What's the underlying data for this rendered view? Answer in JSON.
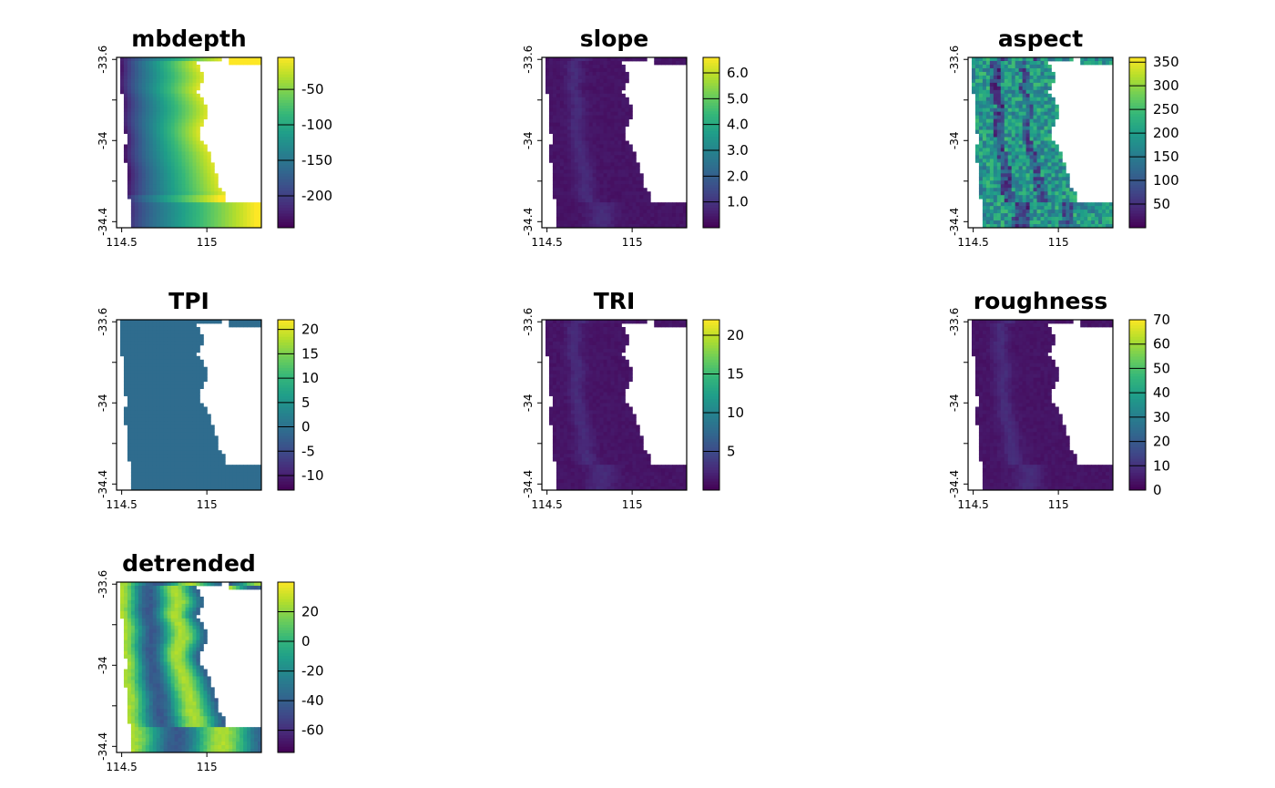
{
  "chart_data": [
    {
      "type": "heatmap",
      "title": "mbdepth",
      "x_ticks": [
        114.5,
        115
      ],
      "x_tick_labels": [
        "114.5",
        "115"
      ],
      "y_ticks": [
        -33.6,
        -34,
        -34.4
      ],
      "y_tick_labels": [
        "-33.6",
        "-34",
        "-34.4"
      ],
      "colorbar": {
        "ticks": [
          -50,
          -100,
          -150,
          -200
        ],
        "tick_labels": [
          "-50",
          "-100",
          "-150",
          "-200"
        ],
        "range": [
          -245,
          -5
        ]
      },
      "pattern": "gradient"
    },
    {
      "type": "heatmap",
      "title": "slope",
      "x_ticks": [
        114.5,
        115
      ],
      "x_tick_labels": [
        "114.5",
        "115"
      ],
      "y_ticks": [
        -33.6,
        -34,
        -34.4
      ],
      "y_tick_labels": [
        "-33.6",
        "-34",
        "-34.4"
      ],
      "colorbar": {
        "ticks": [
          6.0,
          5.0,
          4.0,
          3.0,
          2.0,
          1.0
        ],
        "tick_labels": [
          "6.0",
          "5.0",
          "4.0",
          "3.0",
          "2.0",
          "1.0"
        ],
        "range": [
          0,
          6.6
        ]
      },
      "pattern": "low-ridge"
    },
    {
      "type": "heatmap",
      "title": "aspect",
      "x_ticks": [
        114.5,
        115
      ],
      "x_tick_labels": [
        "114.5",
        "115"
      ],
      "y_ticks": [
        -33.6,
        -34,
        -34.4
      ],
      "y_tick_labels": [
        "-33.6",
        "-34",
        "-34.4"
      ],
      "colorbar": {
        "ticks": [
          350,
          300,
          250,
          200,
          150,
          100,
          50
        ],
        "tick_labels": [
          "350",
          "300",
          "250",
          "200",
          "150",
          "100",
          "50"
        ],
        "range": [
          0,
          360
        ]
      },
      "pattern": "noisy"
    },
    {
      "type": "heatmap",
      "title": "TPI",
      "x_ticks": [
        114.5,
        115
      ],
      "x_tick_labels": [
        "114.5",
        "115"
      ],
      "y_ticks": [
        -33.6,
        -34,
        -34.4
      ],
      "y_tick_labels": [
        "-33.6",
        "-34",
        "-34.4"
      ],
      "colorbar": {
        "ticks": [
          20,
          15,
          10,
          5,
          0,
          -5,
          -10
        ],
        "tick_labels": [
          "20",
          "15",
          "10",
          "5",
          "0",
          "-5",
          "-10"
        ],
        "range": [
          -13,
          22
        ]
      },
      "pattern": "flat"
    },
    {
      "type": "heatmap",
      "title": "TRI",
      "x_ticks": [
        114.5,
        115
      ],
      "x_tick_labels": [
        "114.5",
        "115"
      ],
      "y_ticks": [
        -33.6,
        -34,
        -34.4
      ],
      "y_tick_labels": [
        "-33.6",
        "-34",
        "-34.4"
      ],
      "colorbar": {
        "ticks": [
          20,
          15,
          10,
          5
        ],
        "tick_labels": [
          "20",
          "15",
          "10",
          "5"
        ],
        "range": [
          0,
          22
        ]
      },
      "pattern": "low-ridge"
    },
    {
      "type": "heatmap",
      "title": "roughness",
      "x_ticks": [
        114.5,
        115
      ],
      "x_tick_labels": [
        "114.5",
        "115"
      ],
      "y_ticks": [
        -33.6,
        -34,
        -34.4
      ],
      "y_tick_labels": [
        "-33.6",
        "-34",
        "-34.4"
      ],
      "colorbar": {
        "ticks": [
          70,
          60,
          50,
          40,
          30,
          20,
          10,
          0
        ],
        "tick_labels": [
          "70",
          "60",
          "50",
          "40",
          "30",
          "20",
          "10",
          "0"
        ],
        "range": [
          0,
          70
        ]
      },
      "pattern": "low-ridge"
    },
    {
      "type": "heatmap",
      "title": "detrended",
      "x_ticks": [
        114.5,
        115
      ],
      "x_tick_labels": [
        "114.5",
        "115"
      ],
      "y_ticks": [
        -33.6,
        -34,
        -34.4
      ],
      "y_tick_labels": [
        "-33.6",
        "-34",
        "-34.4"
      ],
      "colorbar": {
        "ticks": [
          20,
          0,
          -20,
          -40,
          -60
        ],
        "tick_labels": [
          "20",
          "0",
          "-20",
          "-40",
          "-60"
        ],
        "range": [
          -75,
          40
        ]
      },
      "pattern": "banded"
    }
  ],
  "colors": {
    "colormap": "viridis",
    "viridis_stops": [
      "#440154",
      "#482878",
      "#3e4a89",
      "#31688e",
      "#26828e",
      "#1f9e89",
      "#35b779",
      "#6ece58",
      "#b5de2b",
      "#fde725"
    ],
    "tpi_fill": "#2f6c8e",
    "frame": "#000000",
    "background": "#ffffff"
  }
}
